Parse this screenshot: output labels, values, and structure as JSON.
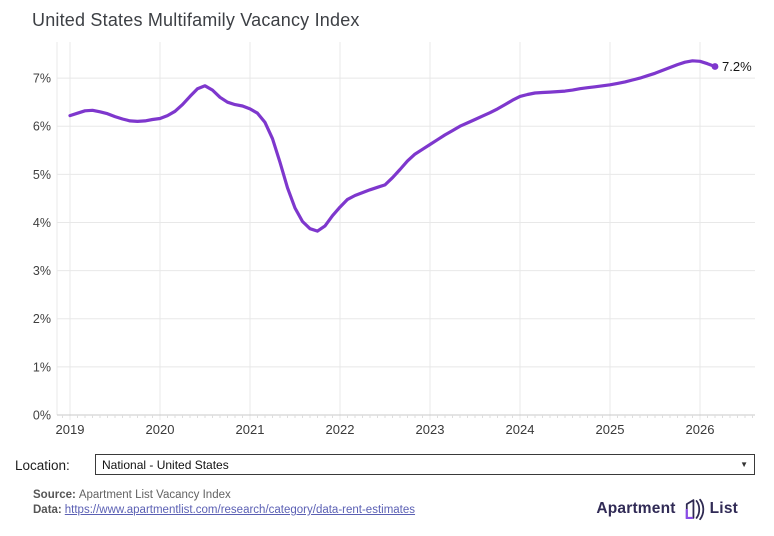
{
  "chart_data": {
    "type": "line",
    "title": "United States Multifamily Vacancy Index",
    "xlabel": "",
    "ylabel": "",
    "x_ticks": [
      2019,
      2020,
      2021,
      2022,
      2023,
      2024,
      2025,
      2026
    ],
    "y_ticks": [
      0,
      1,
      2,
      3,
      4,
      5,
      6,
      7
    ],
    "y_tick_suffix": "%",
    "xlim": [
      2018.856,
      2026.611
    ],
    "ylim": [
      0,
      7.75
    ],
    "grid": true,
    "legend": "none",
    "end_label": "7.2%",
    "line_color": "#7e37cd",
    "grid_color": "#e8e8e8",
    "axis_color": "#c9c9c9",
    "tick_color": "#dedede",
    "label_color": "#3f3f3f",
    "series": [
      {
        "name": "US multifamily vacancy index",
        "start_month": "2019-01",
        "frequency": "monthly",
        "values": [
          6.22,
          6.27,
          6.32,
          6.33,
          6.3,
          6.26,
          6.2,
          6.15,
          6.11,
          6.1,
          6.11,
          6.14,
          6.16,
          6.22,
          6.31,
          6.45,
          6.62,
          6.78,
          6.84,
          6.75,
          6.6,
          6.5,
          6.45,
          6.42,
          6.36,
          6.27,
          6.08,
          5.74,
          5.25,
          4.72,
          4.3,
          4.02,
          3.87,
          3.82,
          3.93,
          4.14,
          4.32,
          4.48,
          4.56,
          4.62,
          4.68,
          4.73,
          4.78,
          4.93,
          5.1,
          5.28,
          5.42,
          5.52,
          5.62,
          5.72,
          5.82,
          5.91,
          6.0,
          6.07,
          6.14,
          6.21,
          6.28,
          6.36,
          6.45,
          6.54,
          6.62,
          6.66,
          6.69,
          6.7,
          6.71,
          6.72,
          6.73,
          6.75,
          6.78,
          6.8,
          6.82,
          6.84,
          6.86,
          6.89,
          6.92,
          6.96,
          7.0,
          7.05,
          7.1,
          7.16,
          7.22,
          7.28,
          7.33,
          7.36,
          7.35,
          7.3,
          7.24
        ]
      }
    ]
  },
  "location": {
    "label": "Location:",
    "selected": "National - United States"
  },
  "footer": {
    "source_label": "Source:",
    "source_text": "Apartment List Vacancy Index",
    "data_label": "Data:",
    "data_link": "https://www.apartmentlist.com/research/category/data-rent-estimates"
  },
  "logo": {
    "text_left": "Apartment",
    "text_right": "List"
  },
  "icons": {
    "dropdown_arrow": "▼"
  }
}
